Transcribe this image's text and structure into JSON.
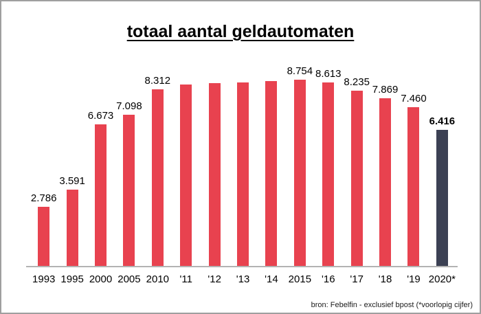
{
  "source": "bron: Febelfin - exclusief bpost (*voorlopig cijfer)",
  "colors": {
    "bar": "#e8424f",
    "bar_final": "#3c4154",
    "axis": "#b3b3b3",
    "frame": "#9f9f9f",
    "text": "#000000"
  },
  "chart_data": {
    "type": "bar",
    "title": "totaal aantal geldautomaten",
    "xlabel": "",
    "ylabel": "",
    "categories": [
      "1993",
      "1995",
      "2000",
      "2005",
      "2010",
      "'11",
      "'12",
      "'13",
      "'14",
      "2015",
      "'16",
      "'17",
      "'18",
      "'19",
      "2020*"
    ],
    "values": [
      2786,
      3591,
      6673,
      7098,
      8312,
      8530,
      8600,
      8640,
      8700,
      8754,
      8613,
      8235,
      7869,
      7460,
      6416
    ],
    "labels": [
      "2.786",
      "3.591",
      "6.673",
      "7.098",
      "8.312",
      "",
      "",
      "",
      "",
      "8.754",
      "8.613",
      "8.235",
      "7.869",
      "7.460",
      "6.416"
    ],
    "highlight_index": 14,
    "ylim": [
      0,
      9000
    ],
    "grid": false,
    "legend": false
  }
}
